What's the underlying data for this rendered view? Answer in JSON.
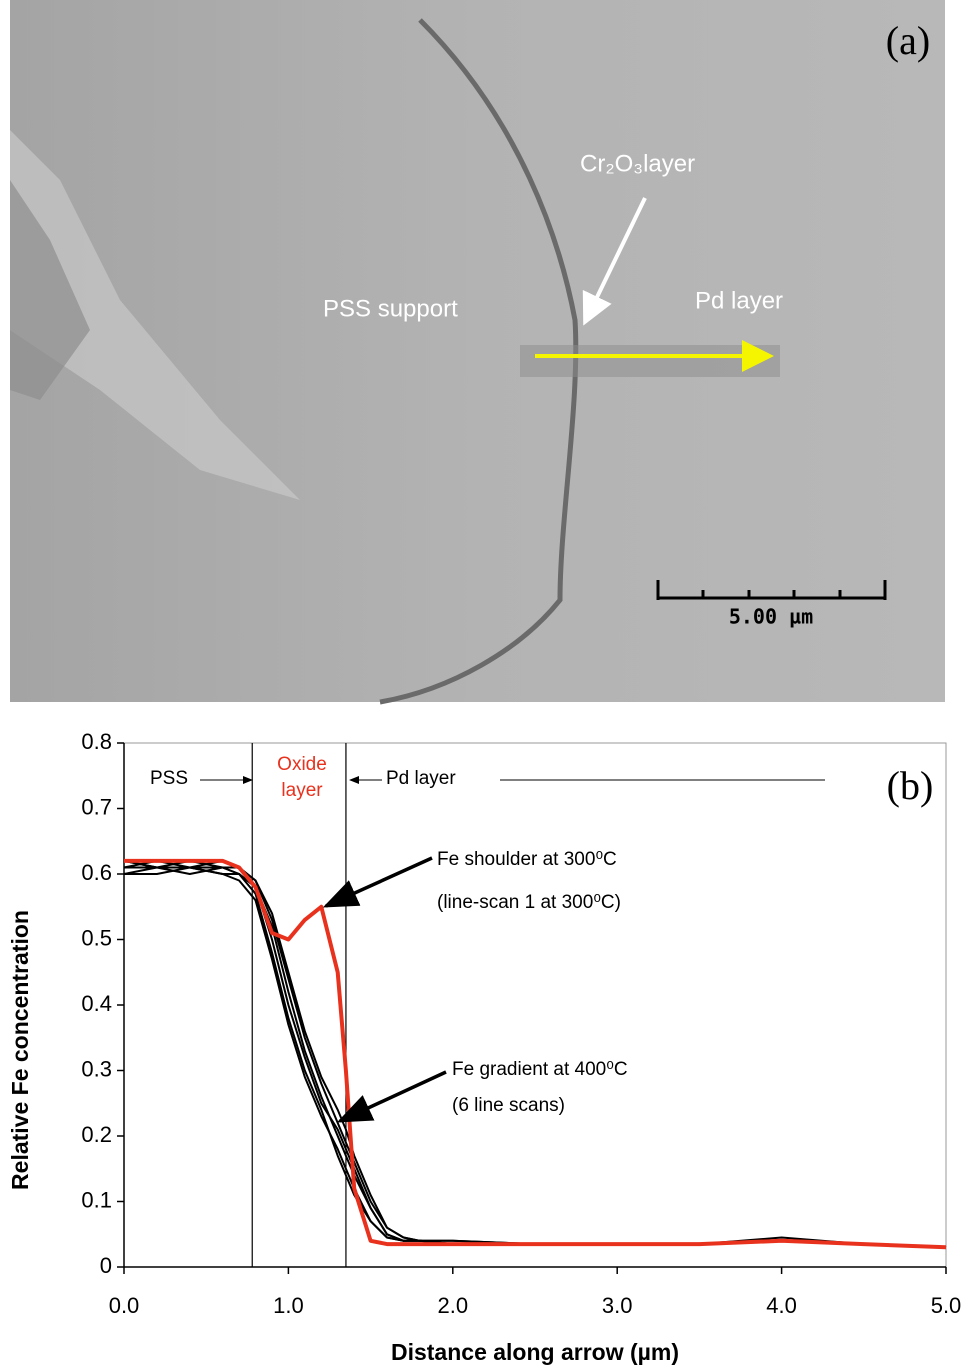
{
  "image_panel": {
    "label": "(a)",
    "oxide_label": "Cr₂O₃layer",
    "support_label": "PSS  support",
    "pd_label": "Pd layer",
    "scale_label": "5.00 µm"
  },
  "chart_data": {
    "type": "line",
    "panel_label": "(b)",
    "xlabel": "Distance along arrow (µm)",
    "ylabel": "Relative Fe concentration",
    "xlim": [
      0,
      5
    ],
    "ylim": [
      0,
      0.8
    ],
    "xticks": [
      {
        "value": 0,
        "label": "0.0"
      },
      {
        "value": 1,
        "label": "1.0"
      },
      {
        "value": 2,
        "label": "2.0"
      },
      {
        "value": 3,
        "label": "3.0"
      },
      {
        "value": 4,
        "label": "4.0"
      },
      {
        "value": 5,
        "label": "5.0"
      }
    ],
    "yticks": [
      0,
      0.1,
      0.2,
      0.3,
      0.4,
      0.5,
      0.6,
      0.7,
      0.8
    ],
    "boundaries": [
      0.78,
      1.35
    ],
    "annotations": {
      "pss": "PSS",
      "oxide_1": "Oxide",
      "oxide_2": "layer",
      "pd": "Pd layer",
      "shoulder_1": "Fe shoulder at 300⁰C",
      "shoulder_2": "(line-scan 1 at 300⁰C)",
      "gradient_1": "Fe gradient at 400⁰C",
      "gradient_2": "(6 line scans)"
    },
    "x": [
      0,
      0.2,
      0.4,
      0.6,
      0.7,
      0.8,
      0.9,
      1.0,
      1.1,
      1.2,
      1.3,
      1.35,
      1.4,
      1.5,
      1.6,
      1.7,
      1.8,
      2.0,
      2.5,
      3.0,
      3.5,
      4.0,
      4.5,
      5.0
    ],
    "series": [
      {
        "color": "#000000",
        "values": [
          0.61,
          0.61,
          0.62,
          0.61,
          0.6,
          0.57,
          0.48,
          0.38,
          0.3,
          0.24,
          0.17,
          0.14,
          0.11,
          0.07,
          0.045,
          0.04,
          0.04,
          0.035,
          0.035,
          0.035,
          0.035,
          0.04,
          0.035,
          0.03
        ]
      },
      {
        "color": "#000000",
        "values": [
          0.62,
          0.61,
          0.61,
          0.6,
          0.6,
          0.58,
          0.52,
          0.42,
          0.33,
          0.26,
          0.2,
          0.17,
          0.14,
          0.09,
          0.05,
          0.04,
          0.04,
          0.035,
          0.035,
          0.035,
          0.035,
          0.045,
          0.035,
          0.03
        ]
      },
      {
        "color": "#000000",
        "values": [
          0.6,
          0.61,
          0.6,
          0.61,
          0.61,
          0.59,
          0.53,
          0.44,
          0.35,
          0.28,
          0.22,
          0.19,
          0.16,
          0.1,
          0.06,
          0.045,
          0.04,
          0.04,
          0.035,
          0.035,
          0.035,
          0.04,
          0.035,
          0.03
        ]
      },
      {
        "color": "#000000",
        "values": [
          0.61,
          0.62,
          0.61,
          0.61,
          0.6,
          0.58,
          0.5,
          0.4,
          0.32,
          0.25,
          0.21,
          0.18,
          0.15,
          0.09,
          0.05,
          0.04,
          0.04,
          0.035,
          0.035,
          0.035,
          0.035,
          0.04,
          0.035,
          0.03
        ]
      },
      {
        "color": "#000000",
        "values": [
          0.6,
          0.6,
          0.61,
          0.6,
          0.59,
          0.56,
          0.47,
          0.37,
          0.29,
          0.23,
          0.18,
          0.15,
          0.12,
          0.07,
          0.045,
          0.04,
          0.04,
          0.035,
          0.035,
          0.035,
          0.035,
          0.04,
          0.035,
          0.03
        ]
      },
      {
        "color": "#000000",
        "values": [
          0.62,
          0.61,
          0.61,
          0.62,
          0.61,
          0.59,
          0.54,
          0.45,
          0.36,
          0.29,
          0.24,
          0.21,
          0.17,
          0.11,
          0.06,
          0.045,
          0.04,
          0.04,
          0.035,
          0.035,
          0.035,
          0.04,
          0.035,
          0.03
        ]
      },
      {
        "color": "#e8321e",
        "values": [
          0.62,
          0.62,
          0.62,
          0.62,
          0.61,
          0.58,
          0.51,
          0.5,
          0.53,
          0.55,
          0.45,
          0.3,
          0.12,
          0.04,
          0.035,
          0.035,
          0.035,
          0.035,
          0.035,
          0.035,
          0.035,
          0.04,
          0.035,
          0.03
        ]
      }
    ]
  }
}
